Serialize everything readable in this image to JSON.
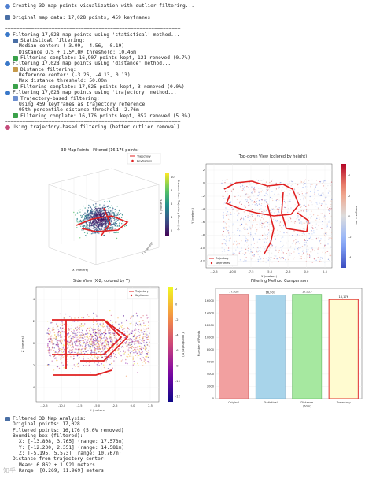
{
  "log": [
    {
      "icon": "glb",
      "indent": 0,
      "text": "Creating 3D map points visualization with outlier filtering..."
    },
    {
      "icon": "",
      "indent": 0,
      "text": ""
    },
    {
      "icon": "bar",
      "indent": 0,
      "text": "Original map data: 17,028 points, 459 keyframes"
    },
    {
      "icon": "",
      "indent": 0,
      "text": ""
    },
    {
      "icon": "",
      "indent": 0,
      "text": "============================================================"
    },
    {
      "icon": "mag",
      "indent": 0,
      "text": "Filtering 17,028 map points using 'statistical' method..."
    },
    {
      "icon": "bar",
      "indent": 1,
      "text": "Statistical filtering:"
    },
    {
      "icon": "",
      "indent": 2,
      "text": "Median center: (-3.09, -4.56, -0.19)"
    },
    {
      "icon": "",
      "indent": 2,
      "text": "Distance Q75 + 1.5*IQR threshold: 10.46m"
    },
    {
      "icon": "chk",
      "indent": 1,
      "text": "Filtering complete: 16,907 points kept, 121 removed (0.7%)"
    },
    {
      "icon": "mag",
      "indent": 0,
      "text": "Filtering 17,028 map points using 'distance' method..."
    },
    {
      "icon": "rul",
      "indent": 1,
      "text": "Distance filtering:"
    },
    {
      "icon": "",
      "indent": 2,
      "text": "Reference center: (-3.26, -4.13, 0.13)"
    },
    {
      "icon": "",
      "indent": 2,
      "text": "Max distance threshold: 50.00m"
    },
    {
      "icon": "chk",
      "indent": 1,
      "text": "Filtering complete: 17,025 points kept, 3 removed (0.0%)"
    },
    {
      "icon": "mag",
      "indent": 0,
      "text": "Filtering 17,028 map points using 'trajectory' method..."
    },
    {
      "icon": "pin",
      "indent": 1,
      "text": "Trajectory-based filtering:"
    },
    {
      "icon": "",
      "indent": 2,
      "text": "Using 459 keyframes as trajectory reference"
    },
    {
      "icon": "",
      "indent": 2,
      "text": "95th percentile distance threshold: 2.76m"
    },
    {
      "icon": "chk",
      "indent": 1,
      "text": "Filtering complete: 16,176 points kept, 852 removed (5.0%)"
    },
    {
      "icon": "",
      "indent": 0,
      "text": "============================================================"
    },
    {
      "icon": "ban",
      "indent": 0,
      "text": "Using trajectory-based filtering (better outlier removal)"
    }
  ],
  "analysis": [
    {
      "icon": "bar",
      "indent": 0,
      "text": "Filtered 3D Map Analysis:"
    },
    {
      "icon": "",
      "indent": 1,
      "text": "Original points: 17,028"
    },
    {
      "icon": "",
      "indent": 1,
      "text": "Filtered points: 16,176 (5.0% removed)"
    },
    {
      "icon": "",
      "indent": 1,
      "text": "Bounding box (filtered):"
    },
    {
      "icon": "",
      "indent": 2,
      "text": "X: [-13.808, 3.765] (range: 17.573m)"
    },
    {
      "icon": "",
      "indent": 2,
      "text": "Y: [-12.230, 2.351] (range: 14.581m)"
    },
    {
      "icon": "",
      "indent": 2,
      "text": "Z: [-5.195, 5.573] (range: 10.767m)"
    },
    {
      "icon": "",
      "indent": 1,
      "text": "Distance from trajectory center:"
    },
    {
      "icon": "",
      "indent": 2,
      "text": "Mean: 6.862 ± 1.921 meters"
    },
    {
      "icon": "",
      "indent": 2,
      "text": "Range: [0.269, 11.969] meters"
    }
  ],
  "plot3d": {
    "title": "3D Map Points - Filtered (16,176 points)",
    "legend": [
      "Trajectory",
      "Keyframes"
    ],
    "colorbar_label": "Distance from Trajectory Center (m)",
    "xlabel": "X (meters)",
    "ylabel": "Y (meters)",
    "zlabel": "Z (meters)",
    "cb_ticks": [
      "10",
      "8",
      "6",
      "4",
      "2"
    ]
  },
  "topdown": {
    "title": "Top-down View (colored by height)",
    "xlabel": "X (meters)",
    "ylabel": "Y (meters)",
    "colorbar_label": "Height Z (m)",
    "legend": [
      "Trajectory",
      "Keyframes"
    ],
    "xticks": [
      "-12.5",
      "-10.0",
      "-7.5",
      "-5.0",
      "-2.5",
      "0.0",
      "2.5"
    ],
    "yticks": [
      "2",
      "0",
      "-2",
      "-4",
      "-6",
      "-8",
      "-10",
      "-12"
    ],
    "cb_ticks": [
      "4",
      "2",
      "0",
      "-2",
      "-4"
    ]
  },
  "sideview": {
    "title": "Side View (X-Z, colored by Y)",
    "xlabel": "X (meters)",
    "ylabel": "Z (meters)",
    "colorbar_label": "Y coordinate (m)",
    "legend": [
      "Trajectory",
      "Keyframes"
    ],
    "xticks": [
      "-12.5",
      "-10.0",
      "-7.5",
      "-5.0",
      "-2.5",
      "0.0",
      "2.5"
    ],
    "yticks": [
      "4",
      "2",
      "0",
      "-2",
      "-4"
    ],
    "cb_ticks": [
      "2",
      "0",
      "-2",
      "-4",
      "-6",
      "-8",
      "-10",
      "-12"
    ]
  },
  "chart_data": {
    "type": "bar",
    "title": "Filtering Method Comparison",
    "ylabel": "Number of Points",
    "categories": [
      "Original",
      "Statistical",
      "Distance\n(50m)",
      "Trajectory"
    ],
    "values": [
      17028,
      16907,
      17025,
      16176
    ],
    "value_labels": [
      "17,028",
      "16,907",
      "17,025",
      "16,176"
    ],
    "ylim": [
      0,
      18000
    ],
    "yticks": [
      "16000",
      "14000",
      "12000",
      "10000",
      "8000",
      "6000",
      "4000",
      "2000",
      "0"
    ],
    "colors": [
      "#f2a0a0",
      "#a8d4ea",
      "#a6e8a0",
      "#fffbd0"
    ],
    "edges": [
      "#d06060",
      "#70a8c8",
      "#60b860",
      "#e03030"
    ]
  },
  "watermark": "知乎"
}
